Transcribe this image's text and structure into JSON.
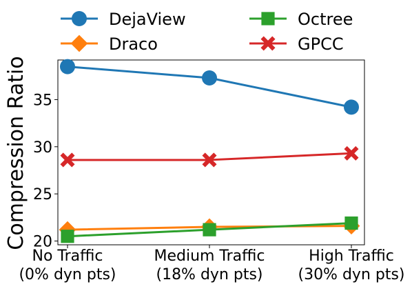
{
  "chart_data": {
    "type": "line",
    "title": "",
    "xlabel": "",
    "ylabel": "Compression Ratio",
    "categories": [
      [
        "No Traffic",
        "(0% dyn pts)"
      ],
      [
        "Medium Traffic",
        "(18% dyn pts)"
      ],
      [
        "High Traffic",
        "(30% dyn pts)"
      ]
    ],
    "ylim": [
      19.6,
      39.2
    ],
    "yticks": [
      20,
      25,
      30,
      35
    ],
    "grid": false,
    "legend_position": "top, above plot, two columns",
    "series": [
      {
        "name": "DejaView",
        "color": "#1f77b4",
        "marker": "circle",
        "values": [
          38.5,
          37.3,
          34.2
        ]
      },
      {
        "name": "Draco",
        "color": "#ff7f0e",
        "marker": "diamond",
        "values": [
          21.2,
          21.5,
          21.6
        ]
      },
      {
        "name": "Octree",
        "color": "#2ca02c",
        "marker": "square",
        "values": [
          20.5,
          21.2,
          21.9
        ]
      },
      {
        "name": "GPCC",
        "color": "#d62728",
        "marker": "x",
        "values": [
          28.6,
          28.6,
          29.3
        ]
      }
    ]
  }
}
